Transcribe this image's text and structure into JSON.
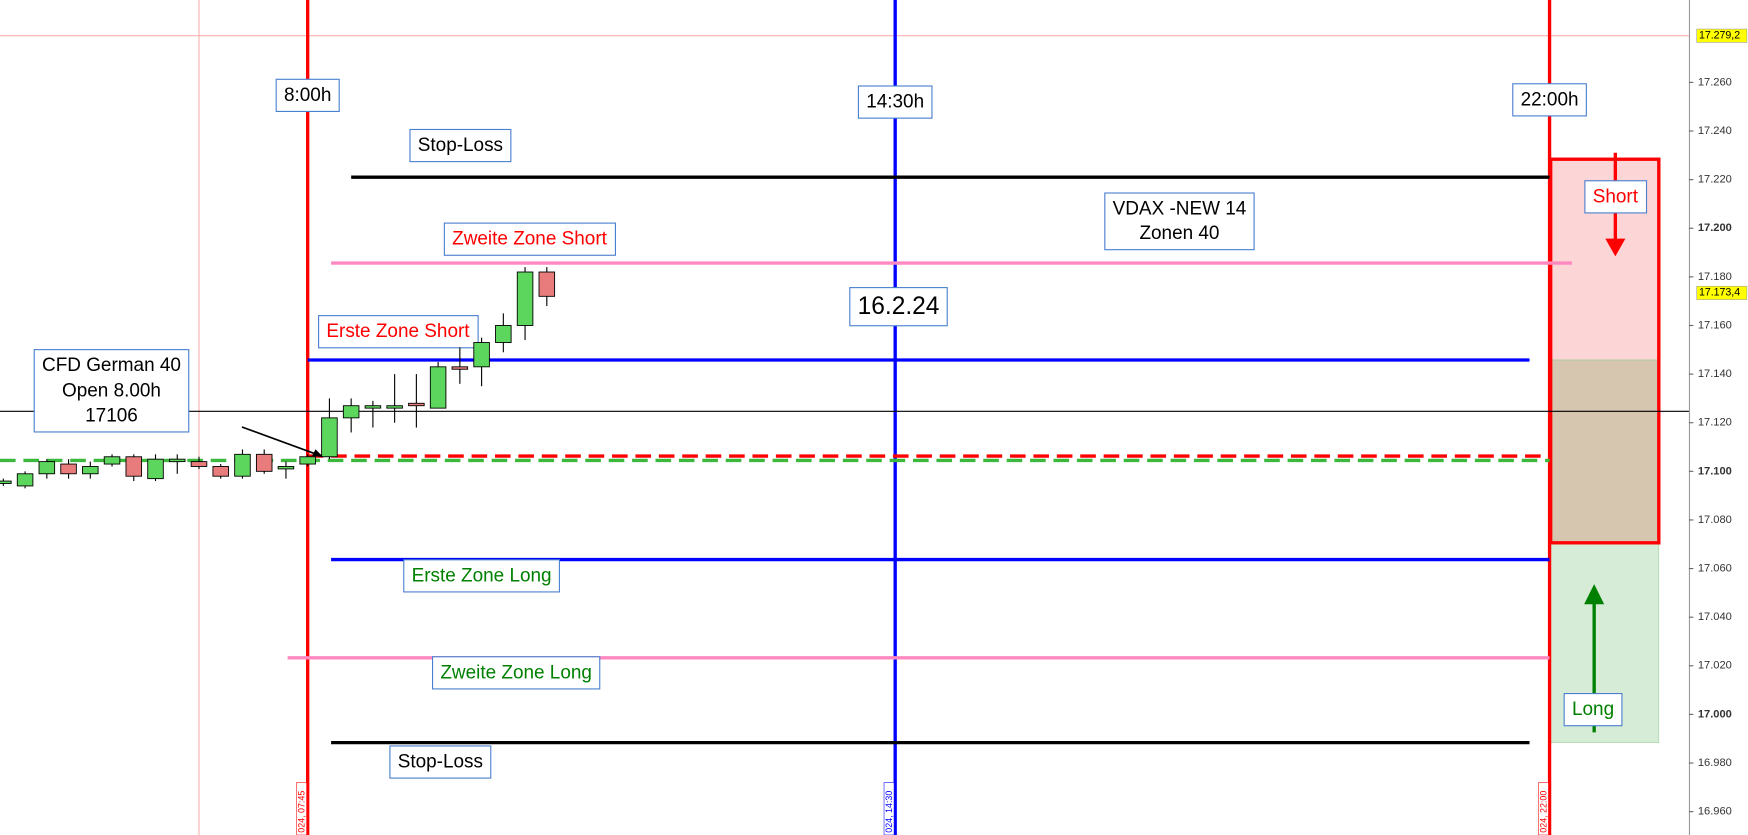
{
  "chart_data": {
    "type": "candlestick",
    "ylim": [
      16950.4,
      17293.9
    ],
    "yticks": [
      {
        "value": 16960,
        "label": "16.960"
      },
      {
        "value": 16980,
        "label": "16.980"
      },
      {
        "value": 17000,
        "label": "17.000"
      },
      {
        "value": 17020,
        "label": "17.020"
      },
      {
        "value": 17040,
        "label": "17.040"
      },
      {
        "value": 17060,
        "label": "17.060"
      },
      {
        "value": 17080,
        "label": "17.080"
      },
      {
        "value": 17100,
        "label": "17.100"
      },
      {
        "value": 17120,
        "label": "17.120"
      },
      {
        "value": 17140,
        "label": "17.140"
      },
      {
        "value": 17160,
        "label": "17.160"
      },
      {
        "value": 17180,
        "label": "17.180"
      },
      {
        "value": 17200,
        "label": "17.200"
      },
      {
        "value": 17220,
        "label": "17.220"
      },
      {
        "value": 17240,
        "label": "17.240"
      },
      {
        "value": 17260,
        "label": "17.260"
      }
    ],
    "up_color": "#5cd65c",
    "down_color": "#e87c7c",
    "candles": {
      "open": [
        17095,
        17094,
        17099,
        17103,
        17099,
        17103,
        17106,
        17097,
        17104,
        17104,
        17102,
        17098,
        17107,
        17101,
        17103,
        17106,
        17122,
        17126,
        17126,
        17128,
        17126,
        17143,
        17143,
        17153,
        17160,
        17182
      ],
      "high": [
        17097,
        17100,
        17105,
        17105,
        17104,
        17107,
        17107,
        17107,
        17107,
        17106,
        17103,
        17109,
        17109,
        17104,
        17107,
        17130,
        17130,
        17129,
        17140,
        17140,
        17145,
        17151,
        17155,
        17165,
        17184,
        17184
      ],
      "low": [
        17094,
        17093,
        17097,
        17097,
        17097,
        17102,
        17096,
        17096,
        17099,
        17101,
        17097,
        17097,
        17099,
        17097,
        17102,
        17105,
        17116,
        17118,
        17120,
        17118,
        17126,
        17136,
        17135,
        17149,
        17154,
        17168
      ],
      "close": [
        17096,
        17099,
        17104,
        17099,
        17102,
        17106,
        17098,
        17105,
        17105,
        17102,
        17098,
        17107,
        17100,
        17102,
        17106,
        17122,
        17127,
        17127,
        17127,
        17127,
        17143,
        17142,
        17153,
        17160,
        17182,
        17172
      ]
    },
    "levels": [
      {
        "value": 17221,
        "color": "#000000",
        "label": "Stop-Loss",
        "label_color": "#000000"
      },
      {
        "value": 17185.7,
        "color": "#ff88c0",
        "label": "Zweite Zone Short",
        "label_color": "#ff0000"
      },
      {
        "value": 17145.8,
        "color": "#0000ff",
        "label": "Erste Zone Short",
        "label_color": "#ff0000"
      },
      {
        "value": 17124.7,
        "color": "#000000",
        "style": "thin"
      },
      {
        "value": 17106.3,
        "color": "#ff0000",
        "style": "dashed"
      },
      {
        "value": 17104.5,
        "color": "#3cb83c",
        "style": "dashed"
      },
      {
        "value": 17063.7,
        "color": "#0000ff",
        "label": "Erste Zone Long",
        "label_color": "#008000"
      },
      {
        "value": 17023.3,
        "color": "#ff88c0",
        "label": "Zweite Zone Long",
        "label_color": "#008000"
      },
      {
        "value": 16988.4,
        "color": "#000000",
        "label": "Stop-Loss",
        "label_color": "#000000"
      }
    ],
    "vlines": [
      {
        "label": "8:00h",
        "axis_label": "024, 07:45",
        "color": "#ff0000"
      },
      {
        "label": "14:30h",
        "axis_label": "024, 14:30",
        "color": "#0000ff"
      },
      {
        "label": "22:00h",
        "axis_label": "024, 22:00",
        "color": "#ff0000"
      }
    ],
    "zones": [
      {
        "from": 17145.8,
        "to": 17228.4,
        "color": "#fcd6d6",
        "label": "Short",
        "label_color": "#ff0000"
      },
      {
        "from": 17070.6,
        "to": 17145.8,
        "color": "#d6c6b0"
      },
      {
        "from": 16988.4,
        "to": 17070.6,
        "color": "#d6ecd6",
        "label": "Long",
        "label_color": "#008000"
      }
    ],
    "annotations": [
      {
        "lines": [
          "CFD German 40",
          "Open 8.00h",
          "17106"
        ]
      },
      {
        "lines": [
          "VDAX -NEW 14",
          "Zonen 40"
        ]
      },
      {
        "lines": [
          "16.2.24"
        ]
      }
    ],
    "price_markers": [
      {
        "value": 17279.2,
        "label": "17.279,2"
      },
      {
        "value": 17173.4,
        "label": "17.173,4"
      }
    ]
  }
}
